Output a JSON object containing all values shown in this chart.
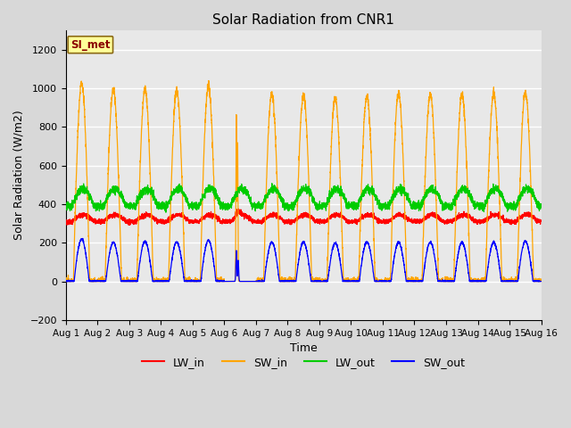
{
  "title": "Solar Radiation from CNR1",
  "xlabel": "Time",
  "ylabel": "Solar Radiation (W/m2)",
  "ylim": [
    -200,
    1300
  ],
  "yticks": [
    -200,
    0,
    200,
    400,
    600,
    800,
    1000,
    1200
  ],
  "n_days": 15,
  "xtick_labels": [
    "Aug 1",
    "Aug 2",
    "Aug 3",
    "Aug 4",
    "Aug 5",
    "Aug 6",
    "Aug 7",
    "Aug 8",
    "Aug 9",
    "Aug 10",
    "Aug 11",
    "Aug 12",
    "Aug 13",
    "Aug 14",
    "Aug 15",
    "Aug 16"
  ],
  "colors": {
    "LW_in": "#ff0000",
    "SW_in": "#ffa500",
    "LW_out": "#00cc00",
    "SW_out": "#0000ff"
  },
  "legend_label": "SI_met",
  "legend_box_facecolor": "#ffff99",
  "legend_box_edgecolor": "#8B6914",
  "fig_facecolor": "#d8d8d8",
  "axes_facecolor": "#e8e8e8",
  "grid_color": "#ffffff",
  "pts_per_day": 288,
  "sw_in_peaks": [
    1025,
    995,
    993,
    987,
    1008,
    0,
    970,
    960,
    952,
    958,
    972,
    968,
    968,
    972,
    978
  ],
  "sw_out_peaks": [
    218,
    202,
    208,
    203,
    212,
    0,
    202,
    203,
    198,
    203,
    202,
    202,
    202,
    202,
    208
  ],
  "lw_in_base": 310,
  "lw_in_amp": 35,
  "lw_out_base": 390,
  "lw_out_amp": 90,
  "lw_in_noise": 6,
  "lw_out_noise": 10
}
